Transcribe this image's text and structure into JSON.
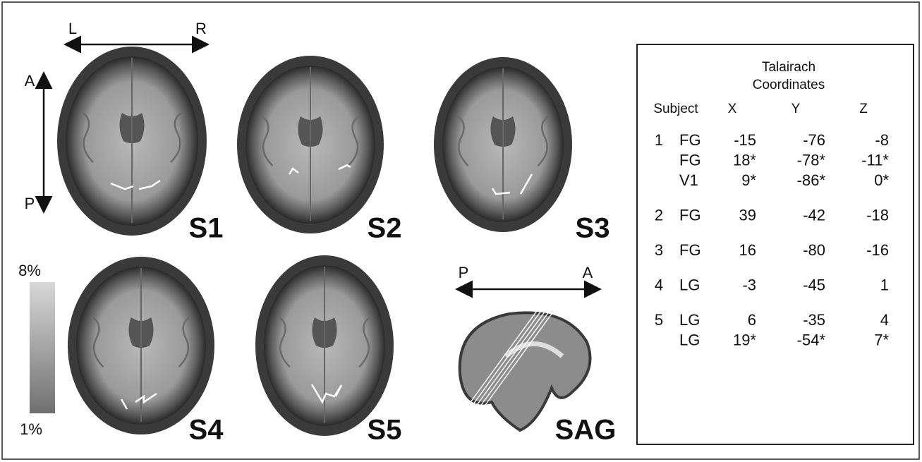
{
  "orientation": {
    "left": "L",
    "right": "R",
    "anterior": "A",
    "posterior": "P"
  },
  "panels": [
    {
      "label": "S1"
    },
    {
      "label": "S2"
    },
    {
      "label": "S3"
    },
    {
      "label": "S4"
    },
    {
      "label": "S5"
    },
    {
      "label": "SAG"
    }
  ],
  "sagittal_orientation": {
    "posterior": "P",
    "anterior": "A"
  },
  "colorbar": {
    "max": "8%",
    "min": "1%"
  },
  "table": {
    "title": [
      "Talairach",
      "Coordinates"
    ],
    "headers": [
      "Subject",
      "X",
      "Y",
      "Z"
    ],
    "groups": [
      {
        "subject": "1",
        "rows": [
          [
            "FG",
            "-15",
            "-76",
            "-8"
          ],
          [
            "FG",
            "18*",
            "-78*",
            "-11*"
          ],
          [
            "V1",
            "9*",
            "-86*",
            "0*"
          ]
        ]
      },
      {
        "subject": "2",
        "rows": [
          [
            "FG",
            "39",
            "-42",
            "-18"
          ]
        ]
      },
      {
        "subject": "3",
        "rows": [
          [
            "FG",
            "16",
            "-80",
            "-16"
          ]
        ]
      },
      {
        "subject": "4",
        "rows": [
          [
            "LG",
            "-3",
            "-45",
            "1"
          ]
        ]
      },
      {
        "subject": "5",
        "rows": [
          [
            "LG",
            "6",
            "-35",
            "4"
          ],
          [
            "LG",
            "19*",
            "-54*",
            "7*"
          ]
        ]
      }
    ]
  }
}
